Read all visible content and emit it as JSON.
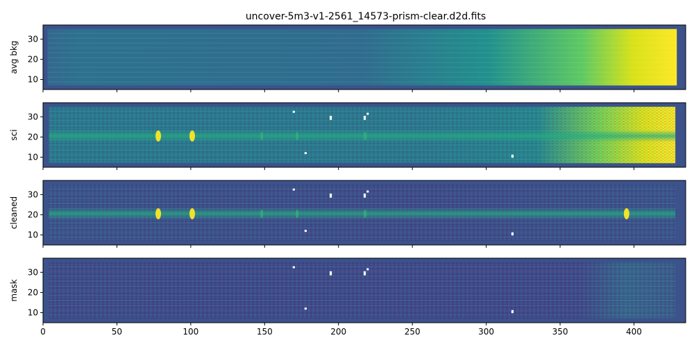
{
  "title": "uncover-5m3-v1-2561_14573-prism-clear.d2d.fits",
  "colormap": "viridis",
  "chart_data": [
    {
      "type": "heatmap",
      "ylabel": "avg bkg",
      "xlim": [
        0,
        435
      ],
      "ylim": [
        5,
        37
      ],
      "x_ticks": [
        0,
        50,
        100,
        150,
        200,
        250,
        300,
        350,
        400
      ],
      "y_ticks": [
        10,
        20,
        30
      ],
      "show_x_tick_labels": false
    },
    {
      "type": "heatmap",
      "ylabel": "sci",
      "xlim": [
        0,
        435
      ],
      "ylim": [
        5,
        37
      ],
      "x_ticks": [
        0,
        50,
        100,
        150,
        200,
        250,
        300,
        350,
        400
      ],
      "y_ticks": [
        10,
        20,
        30
      ],
      "show_x_tick_labels": false,
      "trace_y": 20.5,
      "emission_lines_x": [
        78,
        101,
        148,
        172,
        218
      ]
    },
    {
      "type": "heatmap",
      "ylabel": "cleaned",
      "xlim": [
        0,
        435
      ],
      "ylim": [
        5,
        37
      ],
      "x_ticks": [
        0,
        50,
        100,
        150,
        200,
        250,
        300,
        350,
        400
      ],
      "y_ticks": [
        10,
        20,
        30
      ],
      "show_x_tick_labels": false,
      "trace_y": 20.5,
      "emission_lines_x": [
        78,
        101,
        148,
        172,
        218,
        395
      ]
    },
    {
      "type": "heatmap",
      "ylabel": "mask",
      "xlim": [
        0,
        435
      ],
      "ylim": [
        5,
        37
      ],
      "x_ticks": [
        0,
        50,
        100,
        150,
        200,
        250,
        300,
        350,
        400
      ],
      "y_ticks": [
        10,
        20,
        30
      ],
      "show_x_tick_labels": true
    }
  ]
}
